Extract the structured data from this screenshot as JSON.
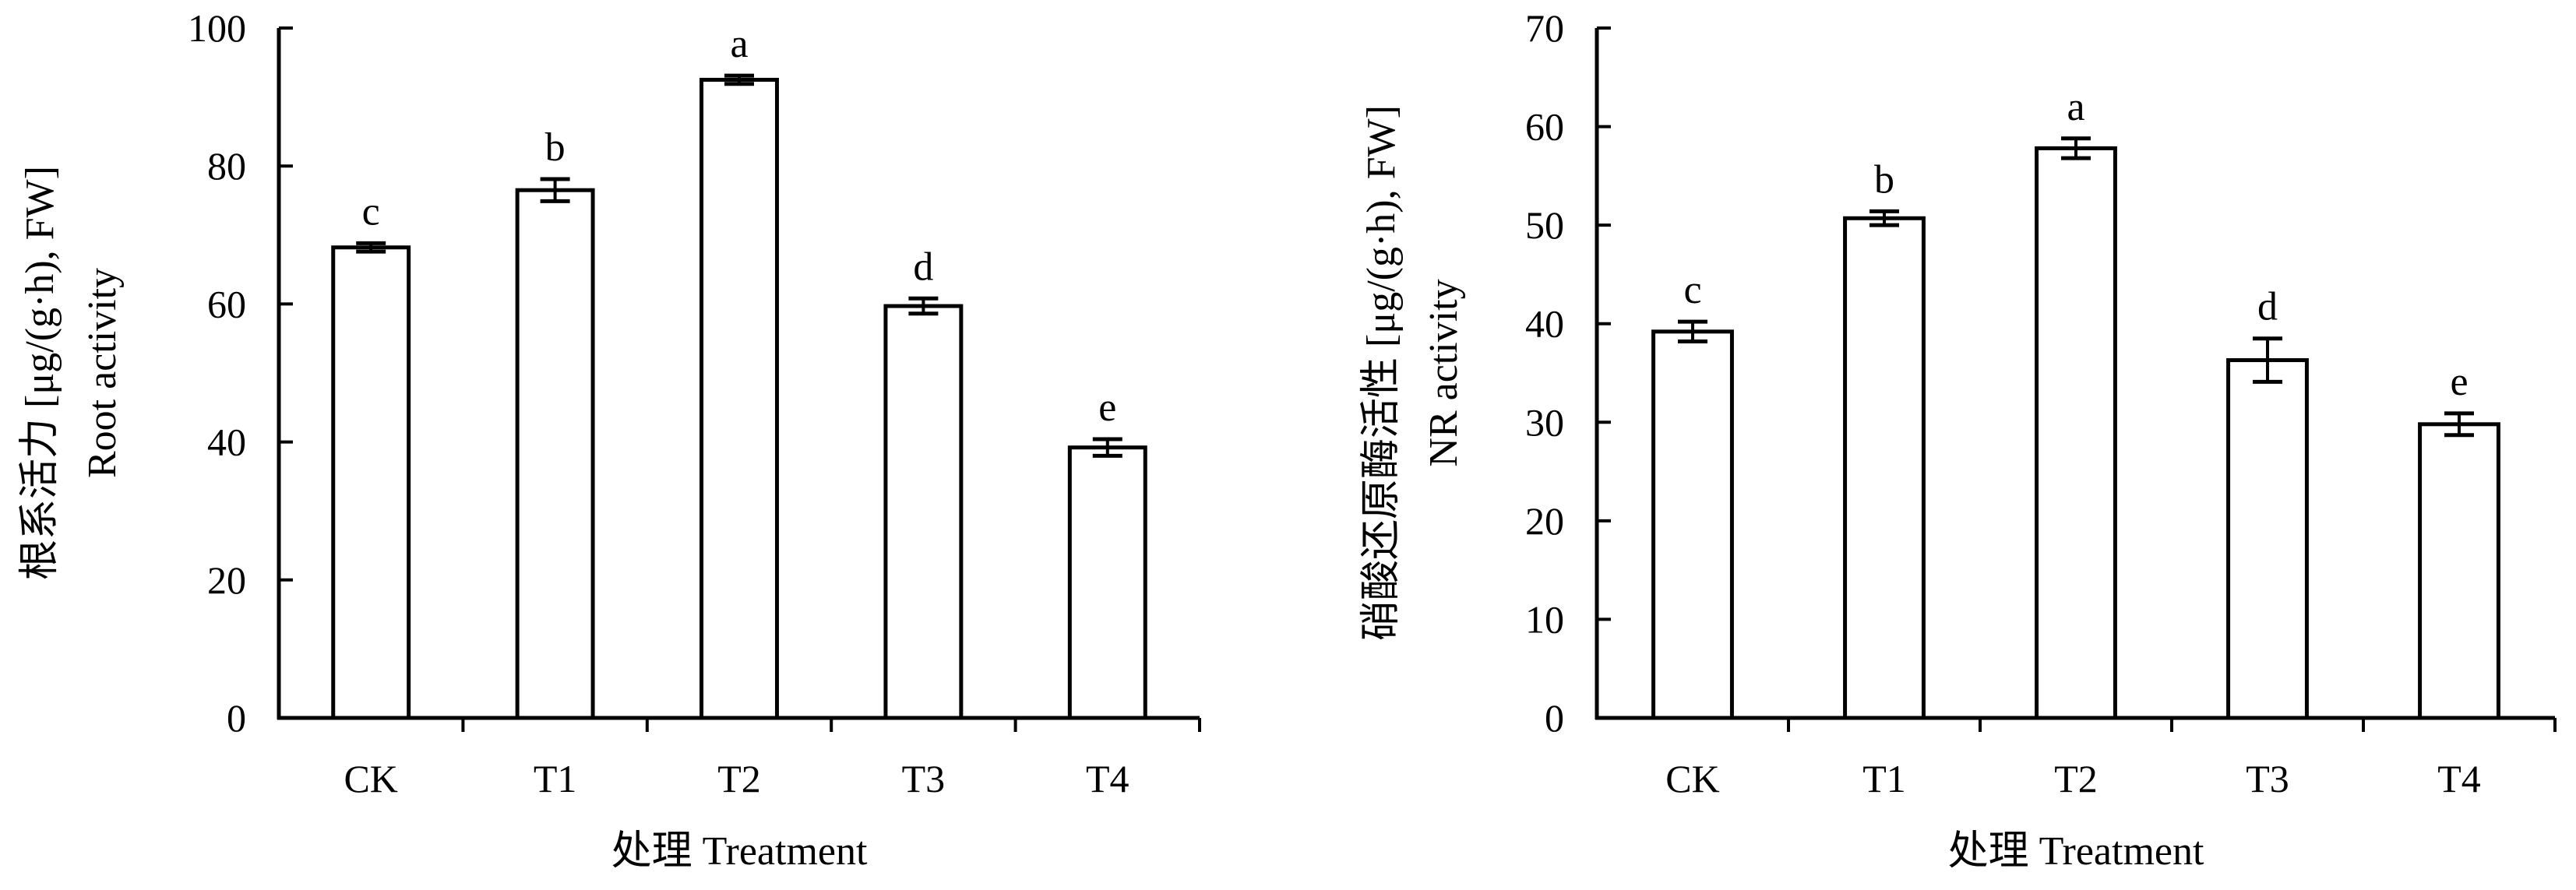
{
  "chart_data": [
    {
      "type": "bar",
      "categories": [
        "CK",
        "T1",
        "T2",
        "T3",
        "T4"
      ],
      "values": [
        68.2,
        76.5,
        92.5,
        59.7,
        39.2
      ],
      "errors": [
        0.6,
        1.6,
        0.6,
        1.1,
        1.2
      ],
      "significance": [
        "c",
        "b",
        "a",
        "d",
        "e"
      ],
      "yticks": [
        "0",
        "20",
        "40",
        "60",
        "80",
        "100"
      ],
      "ylim": [
        0,
        100
      ],
      "ylabel_zh": "根系活力 [μg/(g·h), FW]",
      "ylabel_en": "Root activity",
      "xlabel": "处理 Treatment",
      "grid": false,
      "legend": "none",
      "bar_fill": "#ffffff",
      "bar_stroke": "#000000"
    },
    {
      "type": "bar",
      "categories": [
        "CK",
        "T1",
        "T2",
        "T3",
        "T4"
      ],
      "values": [
        39.2,
        50.7,
        57.8,
        36.3,
        29.8
      ],
      "errors": [
        1.0,
        0.7,
        1.0,
        2.2,
        1.1
      ],
      "significance": [
        "c",
        "b",
        "a",
        "d",
        "e"
      ],
      "yticks": [
        "0",
        "10",
        "20",
        "30",
        "40",
        "50",
        "60",
        "70"
      ],
      "ylim": [
        0,
        70
      ],
      "ylabel_zh": "硝酸还原酶活性 [μg/(g·h), FW]",
      "ylabel_en": "NR activity",
      "xlabel": "处理 Treatment",
      "grid": false,
      "legend": "none",
      "bar_fill": "#ffffff",
      "bar_stroke": "#000000"
    }
  ]
}
